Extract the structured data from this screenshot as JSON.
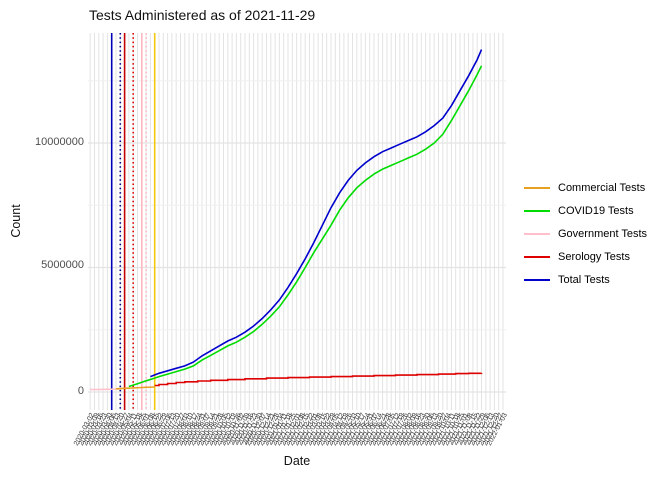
{
  "title": "Tests Administered as of 2021-11-29",
  "x_axis": {
    "label": "Date"
  },
  "y_axis": {
    "label": "Count",
    "tick_labels": [
      "0",
      "5000000",
      "10000000"
    ],
    "tick_values": [
      0,
      5000000,
      10000000
    ]
  },
  "legend": [
    {
      "label": "Commercial Tests",
      "color": "#E8A020"
    },
    {
      "label": "COVID19 Tests",
      "color": "#00DC00"
    },
    {
      "label": "Government Tests",
      "color": "#FFC0CB"
    },
    {
      "label": "Serology Tests",
      "color": "#DE0000"
    },
    {
      "label": "Total Tests",
      "color": "#0000CD"
    }
  ],
  "chart_data": {
    "type": "line",
    "title": "Tests Administered as of 2021-11-29",
    "xlabel": "Date",
    "ylabel": "Count",
    "ylim": [
      0,
      14500000
    ],
    "y_major_gridlines": [
      0,
      5000000,
      10000000
    ],
    "y_minor_gridlines": [
      2500000,
      7500000,
      12500000
    ],
    "grid": "light gray on white, one vertical gridline per date tick",
    "legend_position": "right",
    "dates": [
      "2020-03-02",
      "2020-03-09",
      "2020-03-16",
      "2020-03-23",
      "2020-03-30",
      "2020-04-06",
      "2020-04-13",
      "2020-04-20",
      "2020-04-27",
      "2020-05-04",
      "2020-05-11",
      "2020-05-18",
      "2020-05-25",
      "2020-06-01",
      "2020-06-08",
      "2020-06-15",
      "2020-06-22",
      "2020-06-29",
      "2020-07-06",
      "2020-07-13",
      "2020-07-20",
      "2020-07-27",
      "2020-08-03",
      "2020-08-10",
      "2020-08-17",
      "2020-08-24",
      "2020-08-31",
      "2020-09-07",
      "2020-09-14",
      "2020-09-21",
      "2020-09-28",
      "2020-10-05",
      "2020-10-12",
      "2020-10-19",
      "2020-10-26",
      "2020-11-02",
      "2020-11-09",
      "2020-11-16",
      "2020-11-23",
      "2020-11-30",
      "2020-12-07",
      "2020-12-14",
      "2020-12-21",
      "2020-12-28",
      "2021-01-04",
      "2021-01-11",
      "2021-01-18",
      "2021-01-25",
      "2021-02-01",
      "2021-02-08",
      "2021-02-15",
      "2021-02-22",
      "2021-03-01",
      "2021-03-08",
      "2021-03-15",
      "2021-03-22",
      "2021-03-29",
      "2021-04-05",
      "2021-04-12",
      "2021-04-19",
      "2021-04-26",
      "2021-05-03",
      "2021-05-10",
      "2021-05-17",
      "2021-05-24",
      "2021-05-31",
      "2021-06-07",
      "2021-06-14",
      "2021-06-21",
      "2021-06-28",
      "2021-07-05",
      "2021-07-12",
      "2021-07-19",
      "2021-07-26",
      "2021-08-02",
      "2021-08-09",
      "2021-08-16",
      "2021-08-23",
      "2021-08-30",
      "2021-09-06",
      "2021-09-13",
      "2021-09-20",
      "2021-09-27",
      "2021-10-04",
      "2021-10-11",
      "2021-10-18",
      "2021-10-25",
      "2021-11-01",
      "2021-11-08",
      "2021-11-15",
      "2021-11-22",
      "2021-11-29",
      "2021-12-06",
      "2021-12-13",
      "2021-12-20",
      "2021-12-27",
      "2022-01-03"
    ],
    "series": [
      {
        "name": "Government Tests",
        "color": "#FFC0CB",
        "line": "solid",
        "points": [
          [
            0,
            100000
          ],
          [
            2,
            100000
          ],
          [
            4,
            110000
          ],
          [
            7,
            120000
          ]
        ]
      },
      {
        "name": "Commercial Tests",
        "color": "#E8A020",
        "line": "solid",
        "points": [
          [
            6,
            130000
          ],
          [
            8,
            150000
          ],
          [
            10,
            160000
          ],
          [
            12,
            180000
          ],
          [
            15,
            200000
          ]
        ]
      },
      {
        "name": "Serology Tests",
        "color": "#DE0000",
        "line": "solid",
        "step": true,
        "points": [
          [
            15,
            260000
          ],
          [
            16,
            300000
          ],
          [
            18,
            340000
          ],
          [
            20,
            380000
          ],
          [
            22,
            410000
          ],
          [
            25,
            440000
          ],
          [
            28,
            470000
          ],
          [
            32,
            500000
          ],
          [
            36,
            530000
          ],
          [
            41,
            560000
          ],
          [
            46,
            580000
          ],
          [
            51,
            600000
          ],
          [
            56,
            620000
          ],
          [
            61,
            640000
          ],
          [
            66,
            660000
          ],
          [
            71,
            680000
          ],
          [
            76,
            700000
          ],
          [
            81,
            720000
          ],
          [
            85,
            740000
          ],
          [
            88,
            750000
          ],
          [
            91,
            760000
          ]
        ]
      },
      {
        "name": "COVID19 Tests",
        "color": "#00DC00",
        "line": "solid",
        "points": [
          [
            9,
            220000
          ],
          [
            11,
            330000
          ],
          [
            13,
            450000
          ],
          [
            15,
            560000
          ],
          [
            16,
            620000
          ],
          [
            18,
            720000
          ],
          [
            20,
            820000
          ],
          [
            22,
            920000
          ],
          [
            24,
            1050000
          ],
          [
            26,
            1280000
          ],
          [
            28,
            1470000
          ],
          [
            30,
            1660000
          ],
          [
            32,
            1850000
          ],
          [
            34,
            2000000
          ],
          [
            36,
            2200000
          ],
          [
            38,
            2430000
          ],
          [
            40,
            2720000
          ],
          [
            42,
            3050000
          ],
          [
            44,
            3420000
          ],
          [
            46,
            3900000
          ],
          [
            48,
            4420000
          ],
          [
            50,
            5000000
          ],
          [
            52,
            5600000
          ],
          [
            54,
            6150000
          ],
          [
            56,
            6700000
          ],
          [
            58,
            7300000
          ],
          [
            60,
            7800000
          ],
          [
            62,
            8200000
          ],
          [
            64,
            8500000
          ],
          [
            66,
            8750000
          ],
          [
            68,
            8950000
          ],
          [
            70,
            9100000
          ],
          [
            72,
            9250000
          ],
          [
            74,
            9400000
          ],
          [
            76,
            9550000
          ],
          [
            78,
            9750000
          ],
          [
            80,
            10000000
          ],
          [
            82,
            10350000
          ],
          [
            84,
            10900000
          ],
          [
            86,
            11500000
          ],
          [
            88,
            12100000
          ],
          [
            90,
            12750000
          ],
          [
            91,
            13100000
          ]
        ]
      },
      {
        "name": "Total Tests",
        "color": "#0000CD",
        "line": "solid",
        "points": [
          [
            14,
            620000
          ],
          [
            16,
            750000
          ],
          [
            18,
            850000
          ],
          [
            20,
            950000
          ],
          [
            22,
            1050000
          ],
          [
            24,
            1200000
          ],
          [
            26,
            1450000
          ],
          [
            28,
            1650000
          ],
          [
            30,
            1850000
          ],
          [
            32,
            2050000
          ],
          [
            34,
            2200000
          ],
          [
            36,
            2400000
          ],
          [
            38,
            2650000
          ],
          [
            40,
            2950000
          ],
          [
            42,
            3300000
          ],
          [
            44,
            3700000
          ],
          [
            46,
            4200000
          ],
          [
            48,
            4750000
          ],
          [
            50,
            5350000
          ],
          [
            52,
            6000000
          ],
          [
            54,
            6700000
          ],
          [
            56,
            7400000
          ],
          [
            58,
            8000000
          ],
          [
            60,
            8500000
          ],
          [
            62,
            8900000
          ],
          [
            64,
            9200000
          ],
          [
            66,
            9450000
          ],
          [
            68,
            9650000
          ],
          [
            70,
            9800000
          ],
          [
            72,
            9950000
          ],
          [
            74,
            10100000
          ],
          [
            76,
            10250000
          ],
          [
            78,
            10450000
          ],
          [
            80,
            10700000
          ],
          [
            82,
            11000000
          ],
          [
            84,
            11500000
          ],
          [
            86,
            12100000
          ],
          [
            88,
            12700000
          ],
          [
            90,
            13350000
          ],
          [
            91,
            13750000
          ]
        ]
      }
    ],
    "vlines": [
      {
        "date": "2020-04-06",
        "color": "#0000B8",
        "dash": "solid"
      },
      {
        "date": "2020-04-20",
        "color": "#00008B",
        "dash": "dotted"
      },
      {
        "date": "2020-04-27",
        "color": "#C40000",
        "dash": "solid"
      },
      {
        "date": "2020-05-11",
        "color": "#DE0000",
        "dash": "dotted"
      },
      {
        "date": "2020-05-25",
        "color": "#FFB6C1",
        "dash": "solid"
      },
      {
        "date": "2020-06-01",
        "color": "#FFB6C1",
        "dash": "dotted"
      },
      {
        "date": "2020-06-15",
        "color": "#F5C710",
        "dash": "solid"
      }
    ]
  },
  "style": {
    "grid_major_color": "#E3E3E3",
    "grid_minor_color": "#F0F0F0",
    "panel_background": "#FFFFFF",
    "tick_label_color": "#4D4D4D"
  }
}
